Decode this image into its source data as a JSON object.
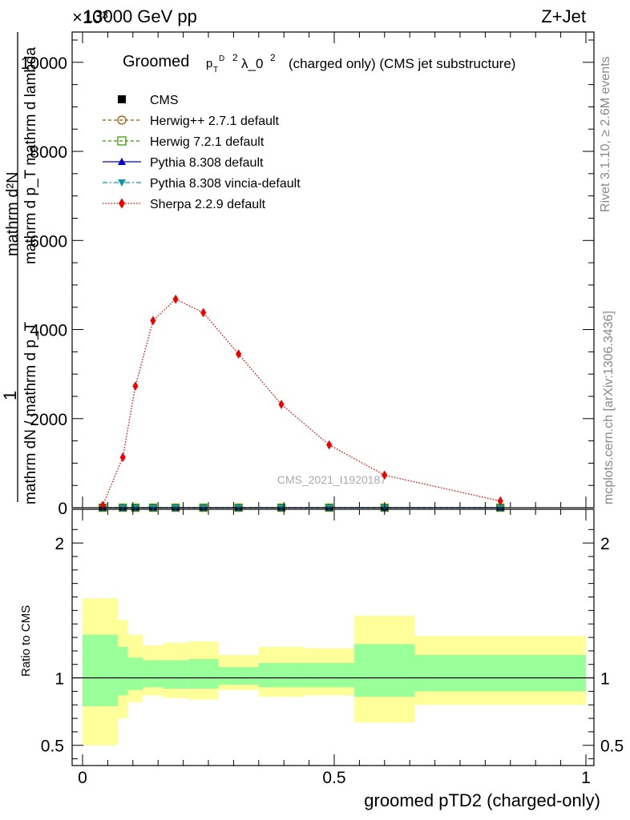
{
  "header": {
    "energy_label": "13000 GeV pp",
    "process_label": "Z+Jet",
    "exponent_label": "×10³"
  },
  "side_labels": {
    "rivet": "Rivet 3.1.10, ≥ 2.6M events",
    "mcplots": "mcplots.cern.ch [arXiv:1306.3436]"
  },
  "watermark": "CMS_2021_I1920187",
  "chart_data": [
    {
      "type": "line",
      "title": "Groomed (p_T^D)^2 λ_0^2  (charged only) (CMS jet substructure)",
      "title_parts": {
        "main": "Groomed",
        "pt": "p",
        "sub": "T",
        "sup_d": "D",
        "sup2": "2",
        "lam": "λ_0",
        "sup3": "2",
        "rest": "(charged only) (CMS jet substructure)"
      },
      "ylabel": "1 / mathrm dN / mathrm d p_T mathrm d^2N / mathrm d p_T mathrm d lambda",
      "ylabel_parts": {
        "num": "mathrm d²N",
        "num_full": "mathrm d p_T mathrm d lambda",
        "left": "1",
        "denom": "mathrm dN / mathrm d p_T"
      },
      "xlim": [
        0,
        1
      ],
      "ylim": [
        0,
        10500
      ],
      "yticks": [
        0,
        2000,
        4000,
        6000,
        8000,
        10000
      ],
      "ytick_labels": [
        "0",
        "2000",
        "4000",
        "6000",
        "8000",
        "10000"
      ],
      "legend_position": "top-left",
      "series": [
        {
          "name": "CMS",
          "color": "#000000",
          "marker": "square-filled",
          "x": [
            0.04,
            0.08,
            0.105,
            0.14,
            0.185,
            0.24,
            0.31,
            0.395,
            0.49,
            0.6,
            0.83
          ],
          "y": [
            0,
            0,
            0,
            0,
            0,
            0,
            0,
            0,
            0,
            0,
            0
          ]
        },
        {
          "name": "Herwig++ 2.7.1 default",
          "color": "#a55400",
          "marker": "circle-open",
          "dash": "4,3",
          "x": [
            0.04,
            0.08,
            0.105,
            0.14,
            0.185,
            0.24,
            0.31,
            0.395,
            0.49,
            0.6,
            0.83
          ],
          "y": [
            0,
            0,
            0,
            0,
            0,
            0,
            0,
            0,
            0,
            0,
            0
          ]
        },
        {
          "name": "Herwig 7.2.1 default",
          "color": "#3a9a00",
          "marker": "square-open",
          "dash": "4,3",
          "x": [
            0.04,
            0.08,
            0.105,
            0.14,
            0.185,
            0.24,
            0.31,
            0.395,
            0.49,
            0.6,
            0.83
          ],
          "y": [
            0,
            0,
            0,
            0,
            0,
            0,
            0,
            0,
            0,
            0,
            0
          ]
        },
        {
          "name": "Pythia 8.308 default",
          "color": "#0000cc",
          "marker": "triangle-up",
          "x": [
            0.04,
            0.08,
            0.105,
            0.14,
            0.185,
            0.24,
            0.31,
            0.395,
            0.49,
            0.6,
            0.83
          ],
          "y": [
            0,
            0,
            0,
            0,
            0,
            0,
            0,
            0,
            0,
            0,
            0
          ]
        },
        {
          "name": "Pythia 8.308 vincia-default",
          "color": "#1199aa",
          "marker": "triangle-down",
          "dash": "6,3,2,3",
          "x": [
            0.04,
            0.08,
            0.105,
            0.14,
            0.185,
            0.24,
            0.31,
            0.395,
            0.49,
            0.6,
            0.83
          ],
          "y": [
            0,
            0,
            0,
            0,
            0,
            0,
            0,
            0,
            0,
            0,
            0
          ]
        },
        {
          "name": "Sherpa 2.2.9 default",
          "color": "#ee0000",
          "marker": "diamond",
          "dash": "1.5,2",
          "x": [
            0.04,
            0.08,
            0.105,
            0.14,
            0.185,
            0.24,
            0.31,
            0.395,
            0.49,
            0.6,
            0.83
          ],
          "y": [
            50,
            1130,
            2730,
            4200,
            4680,
            4380,
            3450,
            2320,
            1410,
            730,
            150
          ]
        }
      ]
    },
    {
      "type": "area",
      "ylabel": "Ratio to CMS",
      "xlabel": "groomed pTD2 (charged-only)",
      "xlim": [
        0,
        1
      ],
      "ylim": [
        0.35,
        2.25
      ],
      "xticks": [
        0,
        0.5,
        1
      ],
      "xtick_labels": [
        "0",
        "0.5",
        "1"
      ],
      "yticks": [
        0.5,
        1,
        2
      ],
      "ytick_labels": [
        "0.5",
        "1",
        "2"
      ],
      "reference_line": 1,
      "bands": [
        {
          "name": "outer",
          "color": "#ffff99",
          "bins": [
            [
              0,
              0.07,
              0.5,
              1.59
            ],
            [
              0.07,
              0.09,
              0.7,
              1.43
            ],
            [
              0.09,
              0.12,
              0.82,
              1.32
            ],
            [
              0.12,
              0.16,
              0.87,
              1.24
            ],
            [
              0.16,
              0.21,
              0.85,
              1.26
            ],
            [
              0.21,
              0.27,
              0.84,
              1.27
            ],
            [
              0.27,
              0.35,
              0.91,
              1.17
            ],
            [
              0.35,
              0.44,
              0.86,
              1.23
            ],
            [
              0.44,
              0.54,
              0.87,
              1.22
            ],
            [
              0.54,
              0.66,
              0.67,
              1.46
            ],
            [
              0.66,
              1.0,
              0.8,
              1.31
            ]
          ]
        },
        {
          "name": "inner",
          "color": "#99ff99",
          "bins": [
            [
              0,
              0.07,
              0.79,
              1.32
            ],
            [
              0.07,
              0.09,
              0.87,
              1.23
            ],
            [
              0.09,
              0.12,
              0.91,
              1.15
            ],
            [
              0.12,
              0.16,
              0.93,
              1.13
            ],
            [
              0.16,
              0.21,
              0.92,
              1.13
            ],
            [
              0.21,
              0.27,
              0.92,
              1.14
            ],
            [
              0.27,
              0.35,
              0.95,
              1.08
            ],
            [
              0.35,
              0.44,
              0.93,
              1.11
            ],
            [
              0.44,
              0.54,
              0.93,
              1.11
            ],
            [
              0.54,
              0.66,
              0.86,
              1.25
            ],
            [
              0.66,
              1.0,
              0.9,
              1.17
            ]
          ]
        }
      ]
    }
  ]
}
